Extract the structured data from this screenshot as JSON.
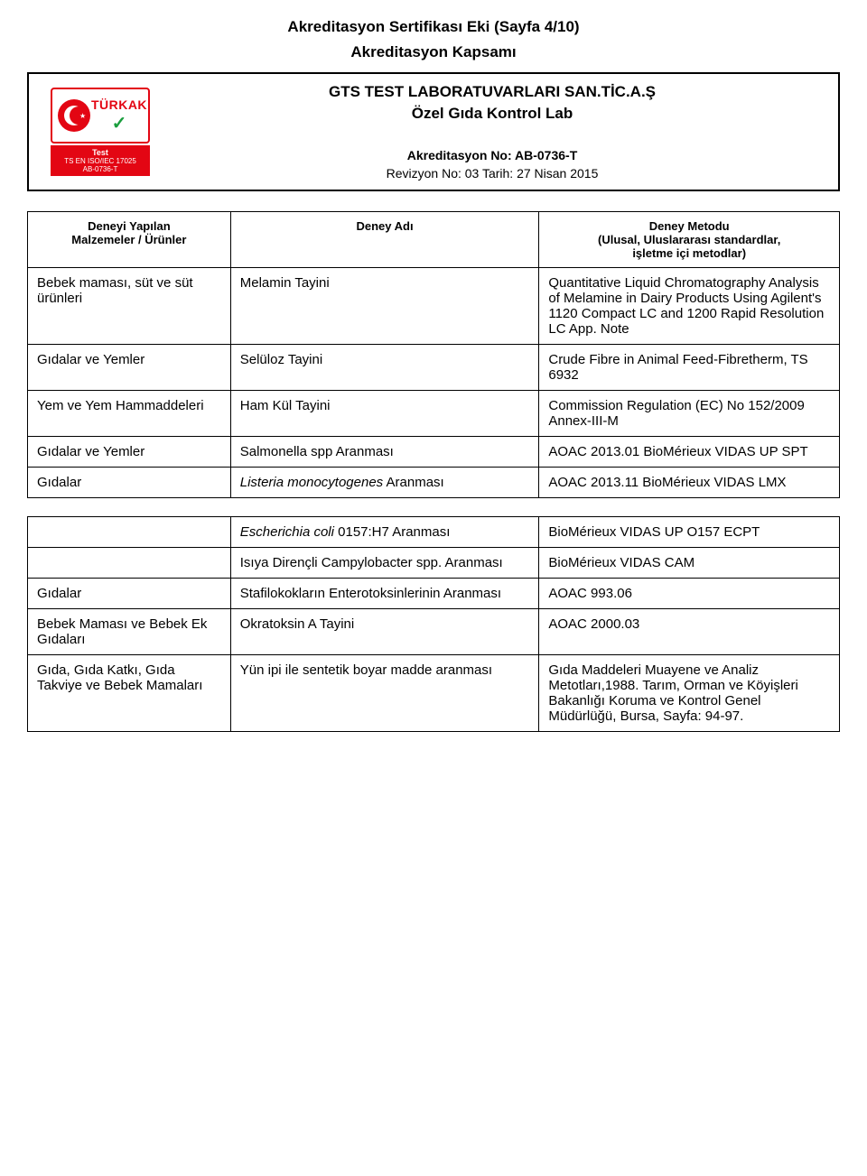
{
  "header": {
    "title": "Akreditasyon Sertifikası Eki (Sayfa 4/10)",
    "subtitle": "Akreditasyon Kapsamı",
    "org_line1": "GTS TEST LABORATUVARLARI SAN.TİC.A.Ş",
    "org_line2": "Özel Gıda Kontrol Lab",
    "ak_no": "Akreditasyon No: AB-0736-T",
    "rev": "Revizyon No: 03 Tarih: 27 Nisan 2015",
    "logo_brand": "TÜRKAK",
    "logo_test": "Test",
    "logo_iso": "TS EN ISO/IEC 17025",
    "logo_code": "AB-0736-T"
  },
  "table1": {
    "headers": {
      "c1a": "Deneyi Yapılan",
      "c1b": "Malzemeler / Ürünler",
      "c2": "Deney Adı",
      "c3a": "Deney Metodu",
      "c3b": "(Ulusal, Uluslararası standardlar,",
      "c3c": "işletme içi metodlar)"
    },
    "rows": [
      {
        "c1": "Bebek maması, süt ve süt ürünleri",
        "c2": "Melamin Tayini",
        "c3": "Quantitative Liquid Chromatography Analysis of Melamine in Dairy Products Using Agilent's 1120 Compact LC and 1200 Rapid Resolution LC App. Note"
      },
      {
        "c1": "Gıdalar ve Yemler",
        "c2": "Selüloz Tayini",
        "c3": "Crude Fibre in Animal Feed-Fibretherm, TS 6932"
      },
      {
        "c1": "Yem ve Yem Hammaddeleri",
        "c2": "Ham Kül Tayini",
        "c3": "Commission Regulation (EC) No 152/2009 Annex-III-M"
      },
      {
        "c1": "Gıdalar ve Yemler",
        "c2": "Salmonella spp Aranması",
        "c3": "AOAC 2013.01 BioMérieux VIDAS UP SPT"
      },
      {
        "c1": "Gıdalar",
        "c2_html": "<span class=\"italic\">Listeria monocytogenes</span> Aranması",
        "c3": "AOAC 2013.11 BioMérieux VIDAS LMX"
      }
    ]
  },
  "table2": {
    "rows": [
      {
        "c1": "",
        "c2_html": "<span class=\"italic\">Escherichia coli</span> 0157:H7 Aranması",
        "c3": "BioMérieux VIDAS UP O157 ECPT"
      },
      {
        "c1": "",
        "c2": "Isıya Dirençli Campylobacter spp. Aranması",
        "c3": "BioMérieux VIDAS CAM"
      },
      {
        "c1": "Gıdalar",
        "c2": "Stafilokokların Enterotoksinlerinin Aranması",
        "c3": "AOAC 993.06"
      },
      {
        "c1": "Bebek Maması ve Bebek Ek Gıdaları",
        "c2": "Okratoksin A Tayini",
        "c3": "AOAC 2000.03"
      },
      {
        "c1": "Gıda, Gıda Katkı, Gıda Takviye ve Bebek Mamaları",
        "c2": "Yün ipi ile sentetik boyar madde aranması",
        "c3": "Gıda Maddeleri Muayene ve Analiz Metotları,1988. Tarım, Orman ve Köyişleri Bakanlığı Koruma ve Kontrol Genel Müdürlüğü, Bursa, Sayfa: 94-97."
      }
    ]
  }
}
